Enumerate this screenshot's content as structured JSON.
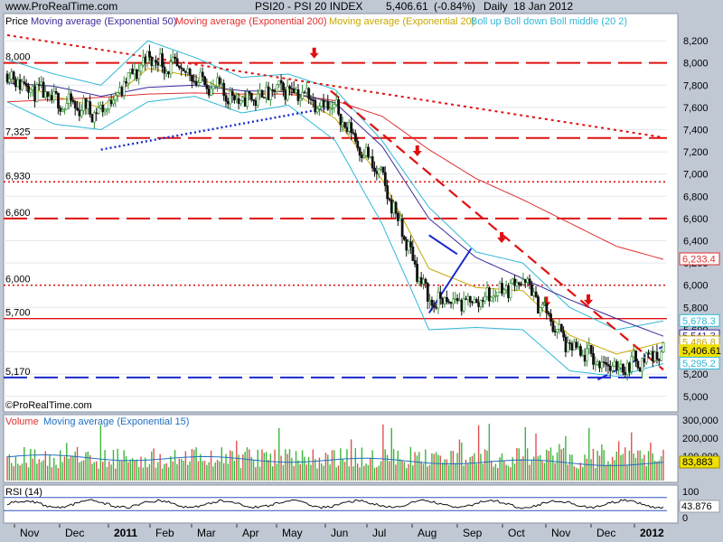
{
  "header": {
    "symbol": "PSI20 - PSI 20 INDEX",
    "last": "5,406.61",
    "change": "(-0.84%)",
    "period": "Daily",
    "date": "18 Jan 2012",
    "website": "www.ProRealTime.com",
    "copyright": "©ProRealTime.com"
  },
  "legend": {
    "price": "Price",
    "ma50": "Moving average (Exponential 50)",
    "ma200": "Moving average (Exponential 200)",
    "ma20": "Moving average (Exponential 20)",
    "boll": "Boll up Boll down Boll middle (20 2)"
  },
  "volume_panel": {
    "title": "Volume",
    "ma_label": "Moving average (Exponential 15)",
    "ticks": [
      "300,000",
      "200,000",
      "100,000"
    ],
    "last_label": "83,883"
  },
  "rsi_panel": {
    "title": "RSI (14)",
    "ticks": [
      "100",
      "0"
    ],
    "last_label": "43.876"
  },
  "price_axis_ticks": [
    "8,200",
    "8,000",
    "7,800",
    "7,600",
    "7,400",
    "7,200",
    "7,000",
    "6,800",
    "6,600",
    "6,400",
    "6,200",
    "6,000",
    "5,800",
    "5,600",
    "5,400",
    "5,200",
    "5,000"
  ],
  "right_labels": [
    {
      "text": "6,233.4",
      "value": 6233.4,
      "color": "#e03030"
    },
    {
      "text": "5,678.3",
      "value": 5678.3,
      "color": "#30b8d8"
    },
    {
      "text": "5,541.3",
      "value": 5541.3,
      "color": "#3a2a9a"
    },
    {
      "text": "5,486.8",
      "value": 5486.8,
      "color": "#c8a800"
    },
    {
      "text": "5,406.61",
      "value": 5406.61,
      "color": "#f0e000"
    },
    {
      "text": "5,295.2",
      "value": 5295.2,
      "color": "#30b8d8"
    }
  ],
  "levels": [
    {
      "label": "8,000",
      "value": 8000,
      "style": "dash"
    },
    {
      "label": "7,325",
      "value": 7325,
      "style": "dash"
    },
    {
      "label": "6,930",
      "value": 6930,
      "style": "dot"
    },
    {
      "label": "6,600",
      "value": 6600,
      "style": "dash"
    },
    {
      "label": "6,000",
      "value": 6000,
      "style": "dot"
    },
    {
      "label": "5,700",
      "value": 5700,
      "style": "solid"
    },
    {
      "label": "5,170",
      "value": 5170,
      "style": "dash-blue"
    }
  ],
  "x_axis_labels": [
    "Nov",
    "Dec",
    "2011",
    "Feb",
    "Mar",
    "Apr",
    "May",
    "Jun",
    "Jul",
    "Aug",
    "Sep",
    "Oct",
    "Nov",
    "Dec",
    "2012"
  ],
  "colors": {
    "background": "#ffffff",
    "frame": "#c0c8d4",
    "bull": "#2e8b2e",
    "bear": "#111111",
    "ma50": "#3a2a9a",
    "ma200": "#e03030",
    "ma20": "#c8a800",
    "boll": "#30b8d8",
    "level": "#e01010",
    "support": "#1a2acc",
    "vol_up": "#3cb43c",
    "vol_down": "#e05050",
    "vol_ma": "#2070c0",
    "rsi": "#111111"
  },
  "chart_data": {
    "type": "line",
    "ylim": [
      4990,
      8290
    ],
    "x_months": [
      "Nov 2010",
      "Dec 2010",
      "Jan 2011",
      "Feb 2011",
      "Mar 2011",
      "Apr 2011",
      "May 2011",
      "Jun 2011",
      "Jul 2011",
      "Aug 2011",
      "Sep 2011",
      "Oct 2011",
      "Nov 2011",
      "Dec 2011",
      "Jan 2012"
    ],
    "series": [
      {
        "name": "Price",
        "values": [
          7900,
          7650,
          7560,
          8050,
          7870,
          7650,
          7780,
          7580,
          6950,
          5850,
          5850,
          6050,
          5430,
          5250,
          5406.61
        ]
      },
      {
        "name": "Moving average (Exponential 50)",
        "values": [
          7820,
          7790,
          7700,
          7780,
          7800,
          7750,
          7740,
          7640,
          7250,
          6600,
          6250,
          6060,
          5870,
          5700,
          5541.3
        ]
      },
      {
        "name": "Moving average (Exponential 200)",
        "values": [
          7650,
          7670,
          7690,
          7720,
          7730,
          7720,
          7720,
          7660,
          7520,
          7220,
          6960,
          6770,
          6560,
          6350,
          6233.4
        ]
      },
      {
        "name": "Moving average (Exponential 20)",
        "values": [
          7850,
          7700,
          7600,
          7950,
          7880,
          7700,
          7760,
          7500,
          6950,
          6150,
          5980,
          5950,
          5550,
          5380,
          5486.8
        ]
      },
      {
        "name": "Boll up",
        "values": [
          8030,
          7900,
          7800,
          8200,
          8050,
          7870,
          7900,
          7760,
          7300,
          6700,
          6300,
          6200,
          5800,
          5600,
          5678.3
        ]
      },
      {
        "name": "Boll down",
        "values": [
          7650,
          7450,
          7400,
          7650,
          7700,
          7550,
          7620,
          7300,
          6550,
          5600,
          5620,
          5600,
          5230,
          5180,
          5295.2
        ]
      }
    ]
  }
}
